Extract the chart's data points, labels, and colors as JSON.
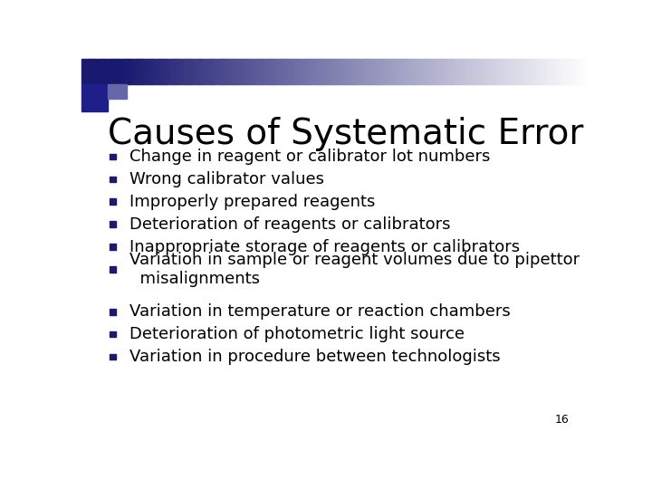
{
  "title": "Causes of Systematic Error",
  "title_fontsize": 28,
  "title_color": "#000000",
  "bullet_color": "#1a1a6e",
  "text_color": "#000000",
  "text_fontsize": 13,
  "background_color": "#ffffff",
  "page_number": "16",
  "bullets": [
    "Change in reagent or calibrator lot numbers",
    "Wrong calibrator values",
    "Improperly prepared reagents",
    "Deterioration of reagents or calibrators",
    "Inappropriate storage of reagents or calibrators",
    "Variation in sample or reagent volumes due to pipettor\n  misalignments",
    "Variation in temperature or reaction chambers",
    "Deterioration of photometric light source",
    "Variation in procedure between technologists"
  ]
}
